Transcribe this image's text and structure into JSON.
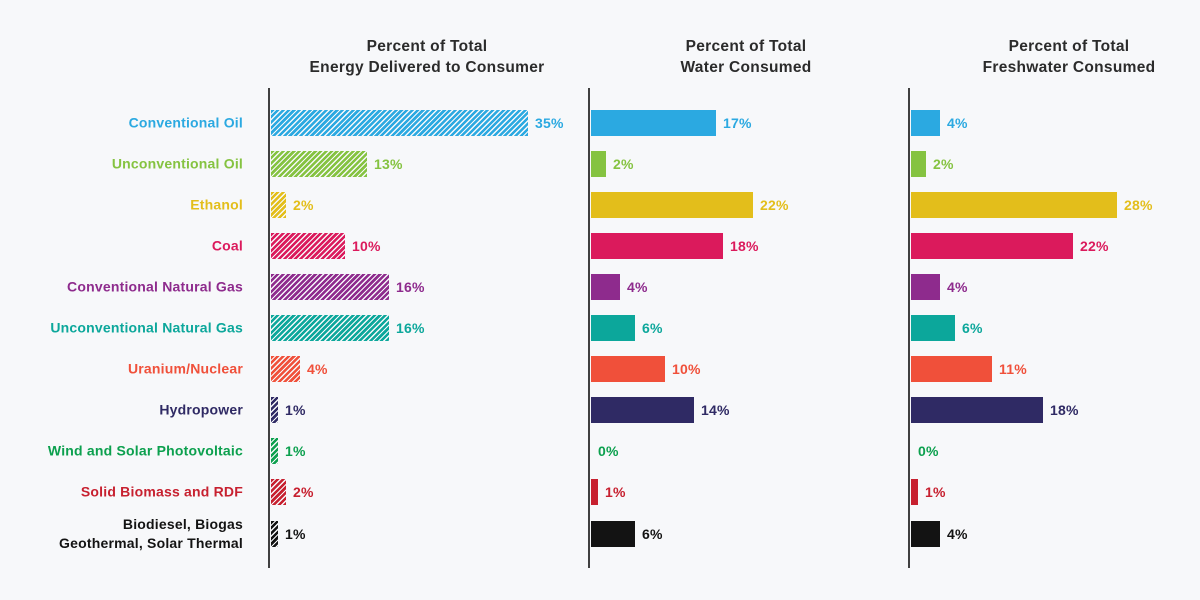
{
  "chart_data": {
    "type": "bar",
    "orientation": "horizontal",
    "value_suffix": "%",
    "value_range": [
      0,
      35
    ],
    "grid": false,
    "legend": "none (category labels on left, color-coded to bars)",
    "categories": [
      {
        "label_lines": [
          "Conventional Oil"
        ],
        "color": "#2BA9E1"
      },
      {
        "label_lines": [
          "Unconventional Oil"
        ],
        "color": "#85C341"
      },
      {
        "label_lines": [
          "Ethanol"
        ],
        "color": "#E3BE1B"
      },
      {
        "label_lines": [
          "Coal"
        ],
        "color": "#DB1A5C"
      },
      {
        "label_lines": [
          "Conventional Natural Gas"
        ],
        "color": "#8E2B8D"
      },
      {
        "label_lines": [
          "Unconventional Natural Gas"
        ],
        "color": "#0CA79B"
      },
      {
        "label_lines": [
          "Uranium/Nuclear"
        ],
        "color": "#F0503A"
      },
      {
        "label_lines": [
          "Hydropower"
        ],
        "color": "#2F2A64"
      },
      {
        "label_lines": [
          "Wind and Solar Photovoltaic"
        ],
        "color": "#0CA04E"
      },
      {
        "label_lines": [
          "Solid Biomass and RDF"
        ],
        "color": "#C7202F"
      },
      {
        "label_lines": [
          "Biodiesel, Biogas",
          "Geothermal, Solar Thermal"
        ],
        "color": "#131313"
      }
    ],
    "panels": [
      {
        "title_line1": "Percent of Total",
        "title_line2": "Energy Delivered to Consumer",
        "bar_style": "hatched",
        "values": [
          35,
          13,
          2,
          10,
          16,
          16,
          4,
          1,
          1,
          2,
          1
        ]
      },
      {
        "title_line1": "Percent of Total",
        "title_line2": "Water Consumed",
        "bar_style": "solid",
        "values": [
          17,
          2,
          22,
          18,
          4,
          6,
          10,
          14,
          0,
          1,
          6
        ]
      },
      {
        "title_line1": "Percent of Total",
        "title_line2": "Freshwater Consumed",
        "bar_style": "solid",
        "values": [
          4,
          2,
          28,
          22,
          4,
          6,
          11,
          18,
          0,
          1,
          4
        ]
      }
    ]
  },
  "colors": {
    "background": "#F7F8FA",
    "axis": "#404040",
    "title_text": "#2B2B2B"
  }
}
